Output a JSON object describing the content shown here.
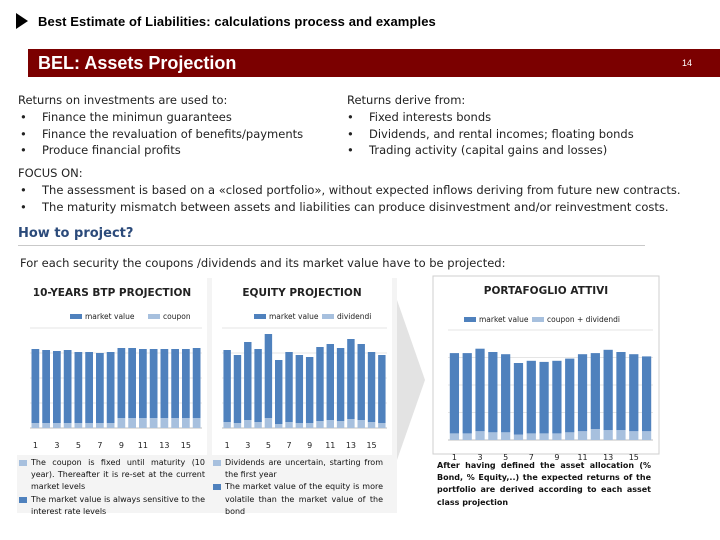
{
  "header": {
    "title": "Best Estimate of Liabilities: calculations process and examples",
    "banner_title": "BEL: Assets Projection",
    "page_number": "14"
  },
  "returns_used": {
    "heading": "Returns on investments are used to:",
    "items": [
      "Finance the minimun guarantees",
      "Finance the revaluation of benefits/payments",
      "Produce financial profits"
    ]
  },
  "returns_derive": {
    "heading": "Returns derive from:",
    "items": [
      "Fixed interests bonds",
      "Dividends, and rental incomes; floating  bonds",
      "Trading activity (capital gains and losses)"
    ]
  },
  "focus": {
    "heading": "FOCUS ON:",
    "items": [
      "The assessment  is based on a «closed portfolio», without expected inflows deriving from future new contracts.",
      "The maturity mismatch between assets and  liabilities can produce disinvestment  and/or reinvestment costs."
    ]
  },
  "how": {
    "heading": "How to project?",
    "subtitle": "For each security the coupons /dividends and its market value have to be projected:"
  },
  "colors": {
    "primary": "#4f81bd",
    "secondary": "#a7c0de",
    "banner": "#7b0000",
    "heading_blue": "#2b4a7a"
  },
  "chart_data": [
    {
      "type": "bar",
      "title": "10-YEARS BTP PROJECTION",
      "legend": [
        "market value",
        "coupon"
      ],
      "x_tick_labels": [
        "1",
        "3",
        "5",
        "7",
        "9",
        "11",
        "13",
        "15"
      ],
      "series": [
        {
          "name": "market value",
          "values": [
            74,
            73,
            72,
            73,
            71,
            71,
            70,
            71,
            70,
            70,
            69,
            69,
            69,
            69,
            69,
            70
          ]
        },
        {
          "name": "coupon",
          "values": [
            5,
            5,
            5,
            5,
            5,
            5,
            5,
            5,
            10,
            10,
            10,
            10,
            10,
            10,
            10,
            10
          ]
        }
      ],
      "ylim": [
        0,
        100
      ],
      "notes": [
        "The coupon is fixed until maturity (10 year). Thereafter it is re-set at the current market levels",
        "The market value is always sensitive to the interest rate levels"
      ]
    },
    {
      "type": "bar",
      "title": "EQUITY PROJECTION",
      "legend": [
        "market value",
        "dividendi"
      ],
      "x_tick_labels": [
        "1",
        "3",
        "5",
        "7",
        "9",
        "11",
        "13",
        "15"
      ],
      "series": [
        {
          "name": "market value",
          "values": [
            72,
            68,
            78,
            73,
            84,
            64,
            70,
            68,
            66,
            74,
            76,
            73,
            80,
            76,
            70,
            68
          ]
        },
        {
          "name": "dividendi",
          "values": [
            6,
            5,
            8,
            6,
            10,
            4,
            6,
            5,
            5,
            7,
            8,
            7,
            9,
            8,
            6,
            5
          ]
        }
      ],
      "ylim": [
        0,
        100
      ],
      "notes": [
        "Dividends are uncertain, starting from the first year",
        "The market value of the equity is more volatile than the market value of the bond"
      ]
    },
    {
      "type": "bar",
      "title": "PORTAFOGLIO ATTIVI",
      "legend": [
        "market value",
        "coupon + dividendi"
      ],
      "x_tick_labels": [
        "1",
        "3",
        "5",
        "7",
        "9",
        "11",
        "13",
        "15"
      ],
      "series": [
        {
          "name": "market value",
          "values": [
            73,
            73,
            75,
            73,
            71,
            65,
            66,
            65,
            66,
            67,
            70,
            69,
            73,
            71,
            70,
            68
          ]
        },
        {
          "name": "coupon + dividendi",
          "values": [
            6,
            6,
            8,
            7,
            7,
            5,
            6,
            6,
            6,
            7,
            8,
            10,
            9,
            9,
            8,
            8
          ]
        }
      ],
      "ylim": [
        0,
        100
      ],
      "notes": [
        "After having defined the asset allocation (% Bond, % Equity,..) the expected returns of the portfolio are derived according to each asset class projection"
      ]
    }
  ]
}
